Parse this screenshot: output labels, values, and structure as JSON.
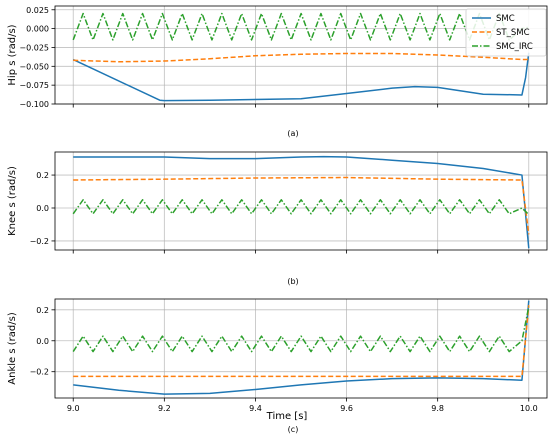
{
  "figure": {
    "xlabel": "Time [s]"
  },
  "legend": {
    "entries": [
      {
        "label": "SMC",
        "color": "#1f77b4",
        "style": "solid"
      },
      {
        "label": "ST_SMC",
        "color": "#ff7f0e",
        "style": "dashed"
      },
      {
        "label": "SMC_IRC",
        "color": "#2ca02c",
        "style": "dashdot"
      }
    ],
    "placement": "top-right"
  },
  "chart_data": [
    {
      "type": "line",
      "caption": "(a)",
      "ylabel": "Hip s (rad/s)",
      "xlim": [
        8.96,
        10.04
      ],
      "ylim": [
        -0.1,
        0.03
      ],
      "yticks": [
        0.025,
        0.0,
        -0.025,
        -0.05,
        -0.075,
        -0.1
      ],
      "ytick_labels": [
        "0.025",
        "0.000",
        "−0.025",
        "−0.050",
        "−0.075",
        "−0.100"
      ],
      "xticks": [
        9.0,
        9.2,
        9.4,
        9.6,
        9.8,
        10.0
      ],
      "grid": true,
      "legend_shown": true,
      "series": [
        {
          "name": "SMC",
          "x": [
            9.0,
            9.19,
            9.2,
            9.3,
            9.5,
            9.6,
            9.7,
            9.75,
            9.8,
            9.9,
            9.985,
            9.993,
            10.0
          ],
          "y": [
            -0.041,
            -0.095,
            -0.0955,
            -0.095,
            -0.093,
            -0.086,
            -0.079,
            -0.077,
            -0.078,
            -0.087,
            -0.088,
            -0.065,
            -0.032
          ]
        },
        {
          "name": "ST_SMC",
          "x": [
            9.0,
            9.1,
            9.2,
            9.3,
            9.4,
            9.5,
            9.6,
            9.7,
            9.8,
            9.9,
            9.985,
            10.0
          ],
          "y": [
            -0.042,
            -0.044,
            -0.043,
            -0.04,
            -0.036,
            -0.034,
            -0.033,
            -0.033,
            -0.035,
            -0.038,
            -0.041,
            -0.041
          ]
        },
        {
          "name": "SMC_IRC",
          "generator": "zigzag",
          "x_start": 9.0,
          "x_end": 9.97,
          "period": 0.0435,
          "high": 0.02,
          "low": -0.015,
          "tail": [
            [
              9.985,
              0.0
            ],
            [
              10.0,
              0.002
            ]
          ]
        }
      ]
    },
    {
      "type": "line",
      "caption": "(b)",
      "ylabel": "Knee s (rad/s)",
      "xlim": [
        8.96,
        10.04
      ],
      "ylim": [
        -0.255,
        0.34
      ],
      "yticks": [
        0.2,
        0.0,
        -0.2
      ],
      "ytick_labels": [
        "0.2",
        "0.0",
        "−0.2"
      ],
      "xticks": [
        9.0,
        9.2,
        9.4,
        9.6,
        9.8,
        10.0
      ],
      "grid": true,
      "legend_shown": false,
      "series": [
        {
          "name": "SMC",
          "x": [
            9.0,
            9.1,
            9.2,
            9.3,
            9.4,
            9.5,
            9.55,
            9.6,
            9.7,
            9.8,
            9.9,
            9.985,
            10.0
          ],
          "y": [
            0.31,
            0.31,
            0.31,
            0.3,
            0.3,
            0.31,
            0.312,
            0.31,
            0.29,
            0.27,
            0.24,
            0.2,
            -0.245
          ]
        },
        {
          "name": "ST_SMC",
          "x": [
            9.0,
            9.2,
            9.4,
            9.6,
            9.8,
            9.985,
            10.0
          ],
          "y": [
            0.17,
            0.175,
            0.182,
            0.185,
            0.175,
            0.17,
            -0.16
          ]
        },
        {
          "name": "SMC_IRC",
          "generator": "zigzag",
          "x_start": 9.0,
          "x_end": 9.97,
          "period": 0.0435,
          "high": 0.05,
          "low": -0.035,
          "tail": [
            [
              9.985,
              0.0
            ],
            [
              10.0,
              -0.04
            ]
          ]
        }
      ]
    },
    {
      "type": "line",
      "caption": "(c)",
      "ylabel": "Ankle s (rad/s)",
      "xlim": [
        8.96,
        10.04
      ],
      "ylim": [
        -0.37,
        0.27
      ],
      "yticks": [
        0.2,
        0.0,
        -0.2
      ],
      "ytick_labels": [
        "0.2",
        "0.0",
        "−0.2"
      ],
      "xticks": [
        9.0,
        9.2,
        9.4,
        9.6,
        9.8,
        10.0
      ],
      "xtick_labels": [
        "9.0",
        "9.2",
        "9.4",
        "9.6",
        "9.8",
        "10.0"
      ],
      "grid": true,
      "legend_shown": false,
      "series": [
        {
          "name": "SMC",
          "x": [
            9.0,
            9.1,
            9.2,
            9.3,
            9.4,
            9.5,
            9.6,
            9.7,
            9.8,
            9.9,
            9.985,
            10.0
          ],
          "y": [
            -0.285,
            -0.32,
            -0.345,
            -0.34,
            -0.315,
            -0.285,
            -0.26,
            -0.245,
            -0.24,
            -0.245,
            -0.255,
            0.26
          ]
        },
        {
          "name": "ST_SMC",
          "x": [
            9.0,
            9.2,
            9.4,
            9.6,
            9.8,
            9.985,
            10.0
          ],
          "y": [
            -0.23,
            -0.23,
            -0.23,
            -0.23,
            -0.23,
            -0.23,
            0.23
          ]
        },
        {
          "name": "SMC_IRC",
          "generator": "zigzag",
          "x_start": 9.0,
          "x_end": 9.97,
          "period": 0.0435,
          "high": 0.03,
          "low": -0.07,
          "tail": [
            [
              9.985,
              0.0
            ],
            [
              10.0,
              0.22
            ]
          ]
        }
      ]
    }
  ]
}
